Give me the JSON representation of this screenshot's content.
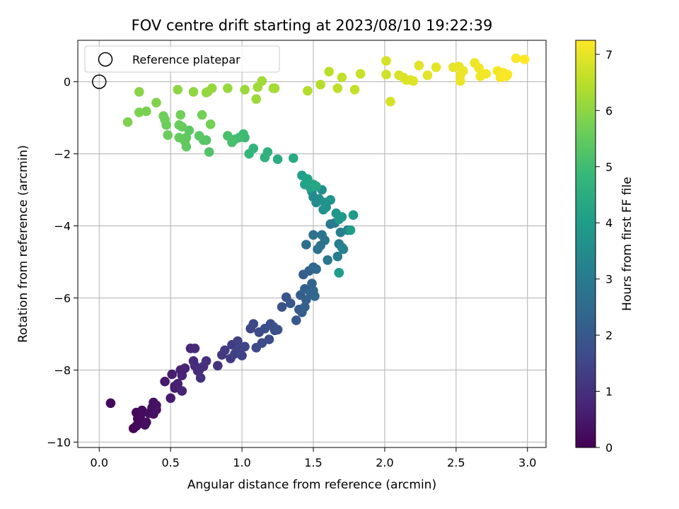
{
  "chart_data": {
    "type": "scatter",
    "title": "FOV centre drift starting at 2023/08/10 19:22:39",
    "xlabel": "Angular distance from reference (arcmin)",
    "ylabel": "Rotation from reference (arcmin)",
    "xlim": [
      -0.15,
      3.13
    ],
    "ylim": [
      -10.15,
      1.15
    ],
    "xticks": [
      0.0,
      0.5,
      1.0,
      1.5,
      2.0,
      2.5,
      3.0
    ],
    "xtick_labels": [
      "0.0",
      "0.5",
      "1.0",
      "1.5",
      "2.0",
      "2.5",
      "3.0"
    ],
    "yticks": [
      -10,
      -8,
      -6,
      -4,
      -2,
      0
    ],
    "ytick_labels": [
      "−10",
      "−8",
      "−6",
      "−4",
      "−2",
      "0"
    ],
    "grid": true,
    "legend": {
      "placement": "top-left",
      "entries": [
        "Reference platepar"
      ]
    },
    "reference_point": {
      "x": 0.0,
      "y": 0.0
    },
    "colorbar": {
      "label": "Hours from first FF file",
      "colormap": "viridis",
      "range": [
        0,
        7.25
      ],
      "ticks": [
        0,
        1,
        2,
        3,
        4,
        5,
        6,
        7
      ],
      "tick_labels": [
        "0",
        "1",
        "2",
        "3",
        "4",
        "5",
        "6",
        "7"
      ]
    },
    "colormap_stops": [
      "#440154",
      "#482878",
      "#3e4a89",
      "#31688e",
      "#26828e",
      "#1f9e89",
      "#35b779",
      "#6ece58",
      "#b5de2b",
      "#fde725"
    ],
    "series": [
      {
        "points": [
          [
            0.08,
            -8.92,
            0.15
          ],
          [
            0.24,
            -9.62,
            0.1
          ],
          [
            0.26,
            -9.55,
            0.12
          ],
          [
            0.26,
            -9.18,
            0.14
          ],
          [
            0.27,
            -9.35,
            0.15
          ],
          [
            0.28,
            -9.48,
            0.16
          ],
          [
            0.29,
            -9.25,
            0.18
          ],
          [
            0.3,
            -9.12,
            0.2
          ],
          [
            0.32,
            -9.52,
            0.22
          ],
          [
            0.33,
            -9.45,
            0.24
          ],
          [
            0.35,
            -9.2,
            0.26
          ],
          [
            0.37,
            -9.05,
            0.28
          ],
          [
            0.38,
            -8.9,
            0.3
          ],
          [
            0.38,
            -9.22,
            0.32
          ],
          [
            0.4,
            -9.1,
            0.34
          ],
          [
            0.4,
            -8.98,
            0.36
          ],
          [
            0.46,
            -8.32,
            0.5
          ],
          [
            0.5,
            -8.78,
            0.55
          ],
          [
            0.51,
            -8.12,
            0.58
          ],
          [
            0.53,
            -8.45,
            0.6
          ],
          [
            0.53,
            -8.5,
            0.62
          ],
          [
            0.55,
            -8.38,
            0.65
          ],
          [
            0.57,
            -8.0,
            0.68
          ],
          [
            0.58,
            -8.58,
            0.7
          ],
          [
            0.58,
            -8.15,
            0.72
          ],
          [
            0.6,
            -7.95,
            0.75
          ],
          [
            0.64,
            -7.4,
            0.8
          ],
          [
            0.66,
            -7.75,
            0.85
          ],
          [
            0.67,
            -7.4,
            0.88
          ],
          [
            0.67,
            -7.88,
            0.9
          ],
          [
            0.69,
            -8.02,
            0.93
          ],
          [
            0.7,
            -8.0,
            0.95
          ],
          [
            0.71,
            -8.22,
            0.98
          ],
          [
            0.73,
            -7.9,
            1.0
          ],
          [
            0.75,
            -7.75,
            1.03
          ],
          [
            0.83,
            -7.88,
            1.1
          ],
          [
            0.86,
            -7.58,
            1.15
          ],
          [
            0.88,
            -7.45,
            1.2
          ],
          [
            0.92,
            -7.68,
            1.25
          ],
          [
            0.93,
            -7.3,
            1.3
          ],
          [
            0.95,
            -7.55,
            1.35
          ],
          [
            0.97,
            -7.2,
            1.4
          ],
          [
            0.98,
            -7.45,
            1.42
          ],
          [
            1.0,
            -7.6,
            1.45
          ],
          [
            1.02,
            -7.35,
            1.5
          ],
          [
            1.06,
            -6.85,
            1.55
          ],
          [
            1.08,
            -6.72,
            1.58
          ],
          [
            1.1,
            -7.38,
            1.6
          ],
          [
            1.12,
            -6.95,
            1.62
          ],
          [
            1.14,
            -7.25,
            1.65
          ],
          [
            1.16,
            -6.85,
            1.68
          ],
          [
            1.19,
            -7.15,
            1.7
          ],
          [
            1.2,
            -6.72,
            1.72
          ],
          [
            1.22,
            -6.8,
            1.75
          ],
          [
            1.23,
            -6.9,
            1.78
          ],
          [
            1.25,
            -6.88,
            1.8
          ],
          [
            1.28,
            -6.25,
            1.85
          ],
          [
            1.31,
            -5.98,
            1.9
          ],
          [
            1.34,
            -6.15,
            1.95
          ],
          [
            1.38,
            -6.62,
            2.0
          ],
          [
            1.4,
            -6.32,
            2.05
          ],
          [
            1.41,
            -5.92,
            2.1
          ],
          [
            1.42,
            -6.4,
            2.12
          ],
          [
            1.43,
            -5.35,
            2.15
          ],
          [
            1.44,
            -5.75,
            2.18
          ],
          [
            1.44,
            -6.25,
            2.2
          ],
          [
            1.45,
            -6.05,
            2.22
          ],
          [
            1.47,
            -5.25,
            2.25
          ],
          [
            1.48,
            -5.85,
            2.28
          ],
          [
            1.49,
            -5.6,
            2.3
          ],
          [
            1.5,
            -5.8,
            2.35
          ],
          [
            1.5,
            -5.15,
            2.4
          ],
          [
            1.51,
            -5.95,
            2.42
          ],
          [
            1.52,
            -5.2,
            2.45
          ],
          [
            1.45,
            -4.52,
            2.6
          ],
          [
            1.5,
            -4.25,
            2.7
          ],
          [
            1.53,
            -4.65,
            2.72
          ],
          [
            1.55,
            -4.55,
            2.75
          ],
          [
            1.56,
            -4.25,
            2.78
          ],
          [
            1.58,
            -4.4,
            2.8
          ],
          [
            1.6,
            -4.95,
            2.85
          ],
          [
            1.62,
            -3.95,
            2.9
          ],
          [
            1.65,
            -3.92,
            2.95
          ],
          [
            1.67,
            -4.85,
            3.0
          ],
          [
            1.68,
            -4.5,
            3.05
          ],
          [
            1.68,
            -5.3,
            3.1
          ],
          [
            1.69,
            -4.18,
            3.12
          ],
          [
            1.7,
            -4.6,
            3.15
          ],
          [
            1.71,
            -4.65,
            3.18
          ],
          [
            1.74,
            -4.12,
            3.2
          ],
          [
            1.49,
            -3.05,
            3.4
          ],
          [
            1.5,
            -3.2,
            3.45
          ],
          [
            1.52,
            -3.35,
            3.5
          ],
          [
            1.54,
            -3.25,
            3.55
          ],
          [
            1.56,
            -3.0,
            3.6
          ],
          [
            1.57,
            -3.55,
            3.65
          ],
          [
            1.58,
            -3.35,
            3.7
          ],
          [
            1.59,
            -3.48,
            3.72
          ],
          [
            1.62,
            -3.28,
            3.75
          ],
          [
            1.66,
            -3.65,
            3.8
          ],
          [
            1.68,
            -3.82,
            3.85
          ],
          [
            1.7,
            -3.75,
            3.88
          ],
          [
            1.78,
            -3.7,
            3.95
          ],
          [
            1.76,
            -4.12,
            4.0
          ],
          [
            1.68,
            -5.3,
            4.02
          ],
          [
            1.42,
            -2.6,
            4.1
          ],
          [
            1.44,
            -2.85,
            4.15
          ],
          [
            1.46,
            -2.7,
            4.18
          ],
          [
            1.48,
            -2.95,
            4.2
          ],
          [
            1.5,
            -2.85,
            4.25
          ],
          [
            1.52,
            -2.9,
            4.28
          ],
          [
            1.36,
            -2.12,
            4.4
          ],
          [
            1.25,
            -2.15,
            4.5
          ],
          [
            1.18,
            -1.95,
            4.6
          ],
          [
            1.16,
            -2.1,
            4.65
          ],
          [
            1.08,
            -1.85,
            4.75
          ],
          [
            1.05,
            -2.0,
            4.8
          ],
          [
            1.02,
            -1.55,
            4.9
          ],
          [
            1.01,
            -1.45,
            4.95
          ],
          [
            0.98,
            -1.55,
            5.0
          ],
          [
            0.95,
            -1.6,
            5.05
          ],
          [
            0.93,
            -1.68,
            5.1
          ],
          [
            0.9,
            -1.5,
            5.15
          ],
          [
            0.77,
            -1.95,
            5.25
          ],
          [
            0.75,
            -1.62,
            5.3
          ],
          [
            0.73,
            -1.62,
            5.32
          ],
          [
            0.7,
            -1.5,
            5.35
          ],
          [
            0.63,
            -1.35,
            5.4
          ],
          [
            0.61,
            -1.55,
            5.42
          ],
          [
            0.61,
            -1.8,
            5.45
          ],
          [
            0.6,
            -1.65,
            5.48
          ],
          [
            0.58,
            -1.25,
            5.5
          ],
          [
            0.56,
            -1.55,
            5.52
          ],
          [
            0.56,
            -1.2,
            5.55
          ],
          [
            0.48,
            -1.48,
            5.58
          ],
          [
            0.47,
            -1.2,
            5.6
          ],
          [
            0.46,
            -1.05,
            5.62
          ],
          [
            0.45,
            -0.95,
            5.64
          ],
          [
            0.57,
            -0.92,
            5.66
          ],
          [
            0.72,
            -0.92,
            5.68
          ],
          [
            0.78,
            -1.18,
            5.7
          ],
          [
            0.33,
            -0.82,
            5.75
          ],
          [
            0.28,
            -0.85,
            5.78
          ],
          [
            0.2,
            -1.12,
            5.8
          ],
          [
            0.4,
            -0.58,
            5.85
          ],
          [
            0.28,
            -0.28,
            5.95
          ],
          [
            0.55,
            -0.22,
            6.0
          ],
          [
            0.66,
            -0.28,
            6.02
          ],
          [
            0.76,
            -0.28,
            6.05
          ],
          [
            0.75,
            -0.3,
            6.07
          ],
          [
            0.79,
            -0.18,
            6.1
          ],
          [
            0.9,
            -0.18,
            6.12
          ],
          [
            1.02,
            -0.22,
            6.15
          ],
          [
            1.1,
            -0.48,
            6.18
          ],
          [
            1.11,
            -0.15,
            6.2
          ],
          [
            1.14,
            0.02,
            6.22
          ],
          [
            1.22,
            -0.18,
            6.25
          ],
          [
            1.23,
            -0.18,
            6.27
          ],
          [
            1.46,
            -0.25,
            6.4
          ],
          [
            1.55,
            -0.08,
            6.45
          ],
          [
            1.61,
            0.28,
            6.5
          ],
          [
            1.67,
            -0.18,
            6.55
          ],
          [
            1.7,
            0.12,
            6.58
          ],
          [
            1.79,
            -0.22,
            6.62
          ],
          [
            1.83,
            0.22,
            6.65
          ],
          [
            2.01,
            0.2,
            6.75
          ],
          [
            2.01,
            0.58,
            6.78
          ],
          [
            2.04,
            -0.55,
            6.8
          ],
          [
            2.1,
            0.18,
            6.82
          ],
          [
            2.13,
            0.12,
            6.85
          ],
          [
            2.15,
            0.05,
            6.87
          ],
          [
            2.18,
            0.05,
            6.88
          ],
          [
            2.2,
            0.02,
            6.9
          ],
          [
            2.24,
            0.45,
            6.92
          ],
          [
            2.3,
            0.18,
            6.95
          ],
          [
            2.36,
            0.4,
            6.97
          ],
          [
            2.48,
            0.4,
            7.0
          ],
          [
            2.52,
            0.42,
            7.02
          ],
          [
            2.53,
            0.18,
            7.04
          ],
          [
            2.55,
            0.3,
            7.05
          ],
          [
            2.53,
            0.02,
            7.06
          ],
          [
            2.63,
            0.52,
            7.08
          ],
          [
            2.66,
            0.38,
            7.1
          ],
          [
            2.67,
            0.15,
            7.12
          ],
          [
            2.71,
            0.22,
            7.13
          ],
          [
            2.79,
            0.3,
            7.15
          ],
          [
            2.81,
            0.12,
            7.17
          ],
          [
            2.83,
            0.25,
            7.18
          ],
          [
            2.85,
            0.15,
            7.2
          ],
          [
            2.86,
            0.2,
            7.21
          ],
          [
            2.92,
            0.65,
            7.22
          ],
          [
            2.98,
            0.62,
            7.25
          ]
        ]
      }
    ]
  }
}
